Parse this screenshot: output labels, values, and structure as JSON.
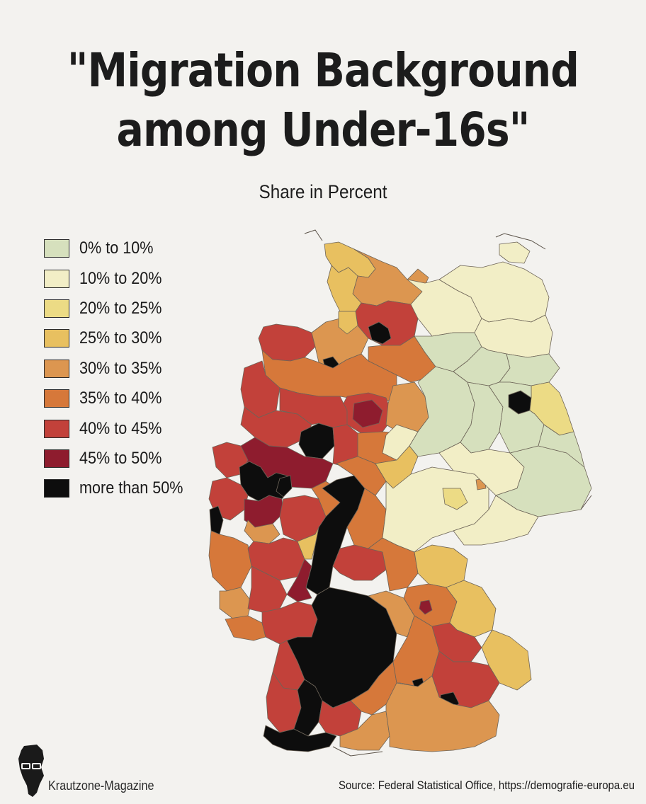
{
  "title": {
    "line1": "\"Migration Background",
    "line2": "among Under-16s\""
  },
  "subtitle": "Share in Percent",
  "legend": [
    {
      "label": "0% to 10%",
      "color": "#d6e0bd"
    },
    {
      "label": "10% to 20%",
      "color": "#f2eec6"
    },
    {
      "label": "20% to 25%",
      "color": "#ecdb85"
    },
    {
      "label": "25% to 30%",
      "color": "#e8c060"
    },
    {
      "label": "30% to 35%",
      "color": "#dc9650"
    },
    {
      "label": "35% to 40%",
      "color": "#d6783a"
    },
    {
      "label": "40% to 45%",
      "color": "#c2413a"
    },
    {
      "label": "45% to 50%",
      "color": "#8e1c2e"
    },
    {
      "label": "more than 50%",
      "color": "#0d0d0d"
    }
  ],
  "map": {
    "country": "Germany",
    "colors": {
      "c0": "#d6e0bd",
      "c1": "#f2eec6",
      "c2": "#ecdb85",
      "c3": "#e8c060",
      "c4": "#dc9650",
      "c5": "#d6783a",
      "c6": "#c2413a",
      "c7": "#8e1c2e",
      "c8": "#0d0d0d",
      "border": "#6d6458"
    }
  },
  "brand": "Krautzone-Magazine",
  "source": "Source: Federal Statistical Office, https://demografie-europa.eu"
}
